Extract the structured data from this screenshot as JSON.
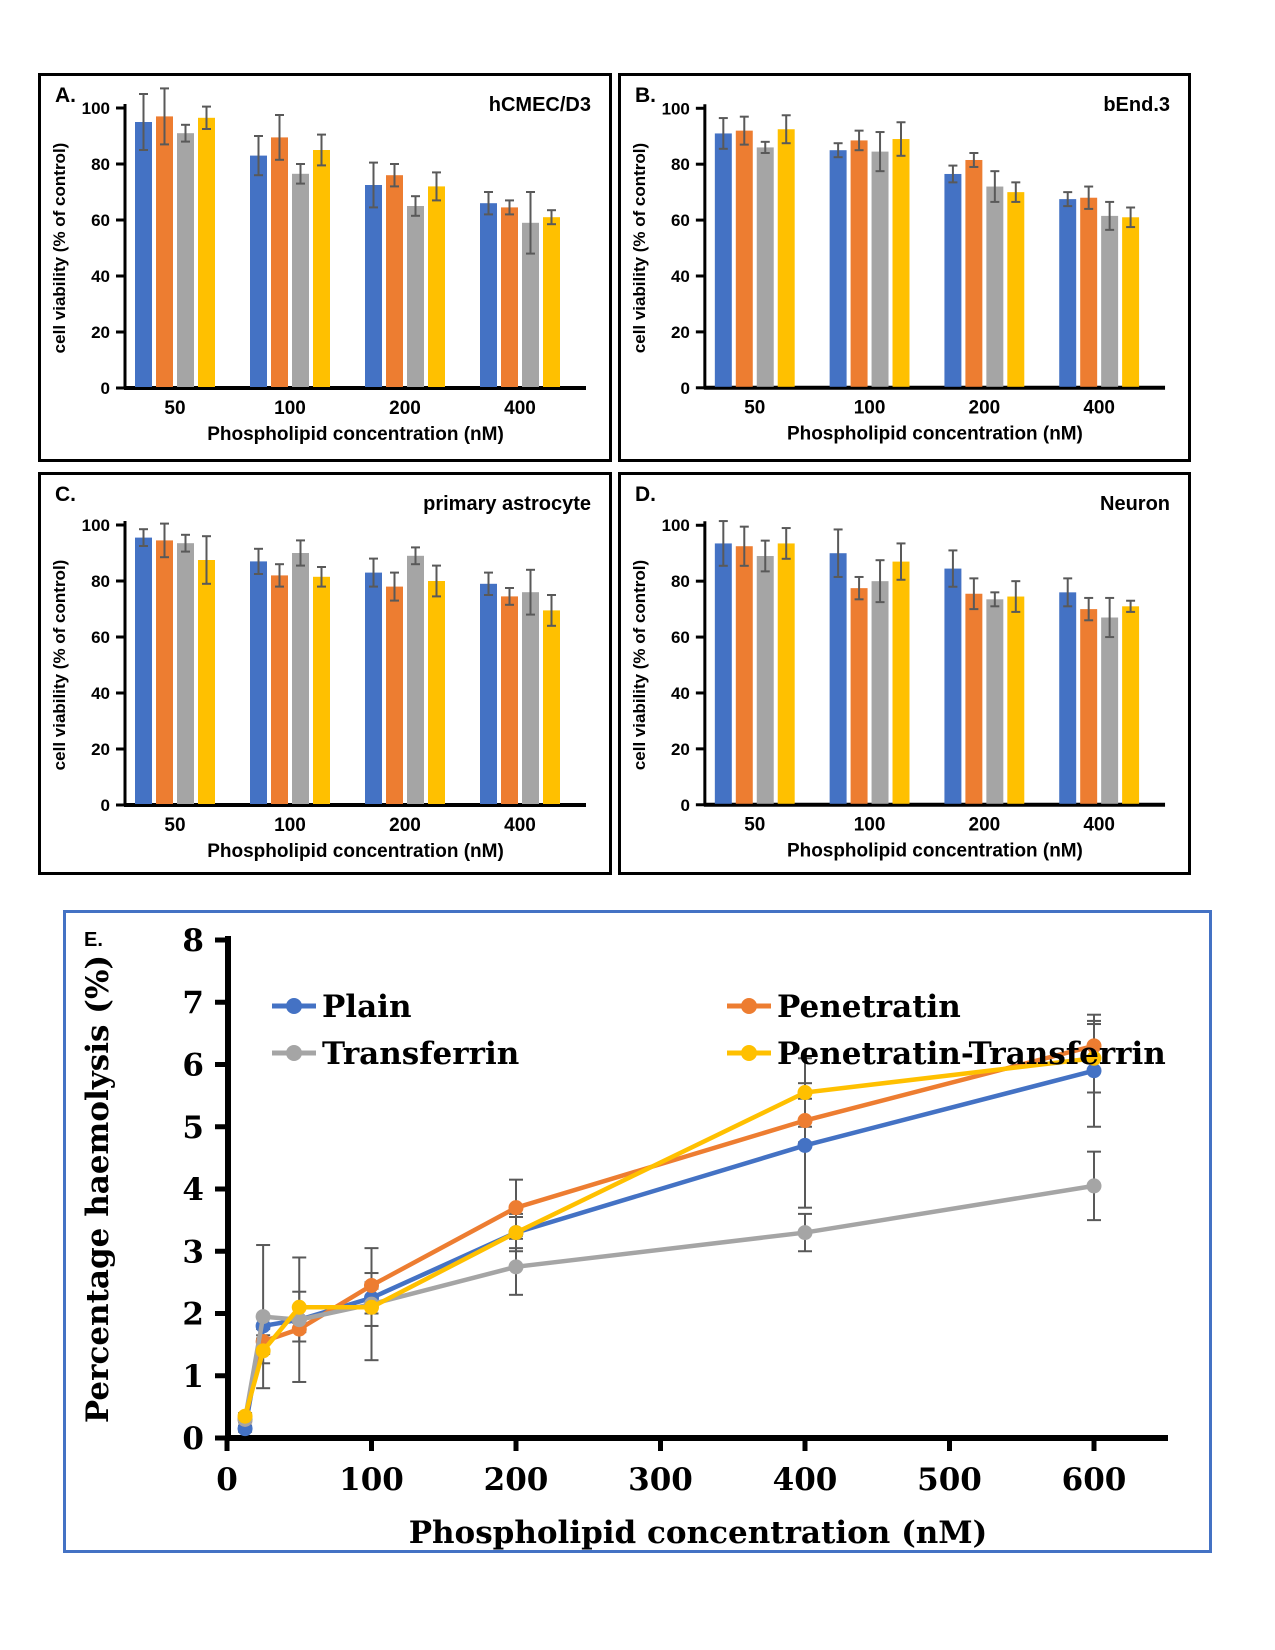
{
  "colors": {
    "blue": "#4472C4",
    "orange": "#ED7D31",
    "gray": "#A5A5A5",
    "yellow": "#FFC000",
    "error_bar": "#595959",
    "panel_e_border": "#4472C4",
    "axis": "#000000"
  },
  "chart_data": [
    {
      "id": "A",
      "type": "bar",
      "panel_letter": "A.",
      "title": "hCMEC/D3",
      "xlabel": "Phospholipid concentration (nM)",
      "ylabel": "cell viability (% of control)",
      "ylim": [
        0,
        100
      ],
      "yticks": [
        0,
        20,
        40,
        60,
        80,
        100
      ],
      "categories": [
        "50",
        "100",
        "200",
        "400"
      ],
      "series": [
        {
          "name": "blue",
          "color": "#4472C4",
          "values": [
            95,
            83,
            72.5,
            66
          ],
          "errors": [
            10,
            7,
            8,
            4
          ]
        },
        {
          "name": "orange",
          "color": "#ED7D31",
          "values": [
            97,
            89.5,
            76,
            64.5
          ],
          "errors": [
            10,
            8,
            4,
            2.5
          ]
        },
        {
          "name": "gray",
          "color": "#A5A5A5",
          "values": [
            91,
            76.5,
            65,
            59
          ],
          "errors": [
            3,
            3.5,
            3.5,
            11
          ]
        },
        {
          "name": "yellow",
          "color": "#FFC000",
          "values": [
            96.5,
            85,
            72,
            61
          ],
          "errors": [
            4,
            5.5,
            5,
            2.5
          ]
        }
      ]
    },
    {
      "id": "B",
      "type": "bar",
      "panel_letter": "B.",
      "title": "bEnd.3",
      "xlabel": "Phospholipid concentration (nM)",
      "ylabel": "cell viability (% of control)",
      "ylim": [
        0,
        100
      ],
      "yticks": [
        0,
        20,
        40,
        60,
        80,
        100
      ],
      "categories": [
        "50",
        "100",
        "200",
        "400"
      ],
      "series": [
        {
          "name": "blue",
          "color": "#4472C4",
          "values": [
            91,
            85,
            76.5,
            67.5
          ],
          "errors": [
            5.5,
            2.5,
            3,
            2.5
          ]
        },
        {
          "name": "orange",
          "color": "#ED7D31",
          "values": [
            92,
            88.5,
            81.5,
            68
          ],
          "errors": [
            5,
            3.5,
            2.5,
            4
          ]
        },
        {
          "name": "gray",
          "color": "#A5A5A5",
          "values": [
            86,
            84.5,
            72,
            61.5
          ],
          "errors": [
            2,
            7,
            5.5,
            5
          ]
        },
        {
          "name": "yellow",
          "color": "#FFC000",
          "values": [
            92.5,
            89,
            70,
            61
          ],
          "errors": [
            5,
            6,
            3.5,
            3.5
          ]
        }
      ]
    },
    {
      "id": "C",
      "type": "bar",
      "panel_letter": "C.",
      "title": "primary astrocyte",
      "xlabel": "Phospholipid concentration (nM)",
      "ylabel": "cell viability (% of control)",
      "ylim": [
        0,
        100
      ],
      "yticks": [
        0,
        20,
        40,
        60,
        80,
        100
      ],
      "categories": [
        "50",
        "100",
        "200",
        "400"
      ],
      "series": [
        {
          "name": "blue",
          "color": "#4472C4",
          "values": [
            95.5,
            87,
            83,
            79
          ],
          "errors": [
            3,
            4.5,
            5,
            4
          ]
        },
        {
          "name": "orange",
          "color": "#ED7D31",
          "values": [
            94.5,
            82,
            78,
            74.5
          ],
          "errors": [
            6,
            4,
            5,
            3
          ]
        },
        {
          "name": "gray",
          "color": "#A5A5A5",
          "values": [
            93.5,
            90,
            89,
            76
          ],
          "errors": [
            3,
            4.5,
            3,
            8
          ]
        },
        {
          "name": "yellow",
          "color": "#FFC000",
          "values": [
            87.5,
            81.5,
            80,
            69.5
          ],
          "errors": [
            8.5,
            3.5,
            5.5,
            5.5
          ]
        }
      ]
    },
    {
      "id": "D",
      "type": "bar",
      "panel_letter": "D.",
      "title": "Neuron",
      "xlabel": "Phospholipid concentration (nM)",
      "ylabel": "cell viability (% of control)",
      "ylim": [
        0,
        100
      ],
      "yticks": [
        0,
        20,
        40,
        60,
        80,
        100
      ],
      "categories": [
        "50",
        "100",
        "200",
        "400"
      ],
      "series": [
        {
          "name": "blue",
          "color": "#4472C4",
          "values": [
            93.5,
            90,
            84.5,
            76
          ],
          "errors": [
            8,
            8.5,
            6.5,
            5
          ]
        },
        {
          "name": "orange",
          "color": "#ED7D31",
          "values": [
            92.5,
            77.5,
            75.5,
            70
          ],
          "errors": [
            7,
            4,
            5.5,
            4
          ]
        },
        {
          "name": "gray",
          "color": "#A5A5A5",
          "values": [
            89,
            80,
            73.5,
            67
          ],
          "errors": [
            5.5,
            7.5,
            2.5,
            7
          ]
        },
        {
          "name": "yellow",
          "color": "#FFC000",
          "values": [
            93.5,
            87,
            74.5,
            71
          ],
          "errors": [
            5.5,
            6.5,
            5.5,
            2
          ]
        }
      ]
    },
    {
      "id": "E",
      "type": "line",
      "panel_letter": "E.",
      "xlabel": "Phospholipid concentration (nM)",
      "ylabel": "Percentage haemolysis (%)",
      "xlim": [
        0,
        650
      ],
      "xticks": [
        0,
        100,
        200,
        300,
        400,
        500,
        600
      ],
      "ylim": [
        0,
        8
      ],
      "yticks": [
        0,
        1,
        2,
        3,
        4,
        5,
        6,
        7,
        8
      ],
      "x": [
        12.5,
        25,
        50,
        100,
        200,
        400,
        600
      ],
      "series": [
        {
          "name": "Plain",
          "color": "#4472C4",
          "values": [
            0.15,
            1.8,
            1.9,
            2.25,
            3.3,
            4.7,
            5.9
          ],
          "errors": [
            0.05,
            0.15,
            0.2,
            0.25,
            0.25,
            1.0,
            0.9
          ]
        },
        {
          "name": "Penetratin",
          "color": "#ED7D31",
          "values": [
            0.3,
            1.55,
            1.75,
            2.45,
            3.7,
            5.1,
            6.3
          ],
          "errors": [
            0.05,
            0.2,
            0.2,
            0.2,
            0.45,
            0.35,
            0.4
          ]
        },
        {
          "name": "Transferrin",
          "color": "#A5A5A5",
          "values": [
            0.3,
            1.95,
            1.9,
            2.15,
            2.75,
            3.3,
            4.05
          ],
          "errors": [
            0.05,
            1.15,
            1.0,
            0.9,
            0.45,
            0.3,
            0.55
          ]
        },
        {
          "name": "Penetratin-Transferrin",
          "color": "#FFC000",
          "values": [
            0.35,
            1.4,
            2.1,
            2.1,
            3.3,
            5.55,
            6.1
          ],
          "errors": [
            0.05,
            0.2,
            0.25,
            0.3,
            0.3,
            0.55,
            0.55
          ]
        }
      ],
      "legend": {
        "position": "top-inside",
        "columns": [
          [
            "Plain",
            "Transferrin"
          ],
          [
            "Penetratin",
            "Penetratin-Transferrin"
          ]
        ]
      }
    }
  ]
}
